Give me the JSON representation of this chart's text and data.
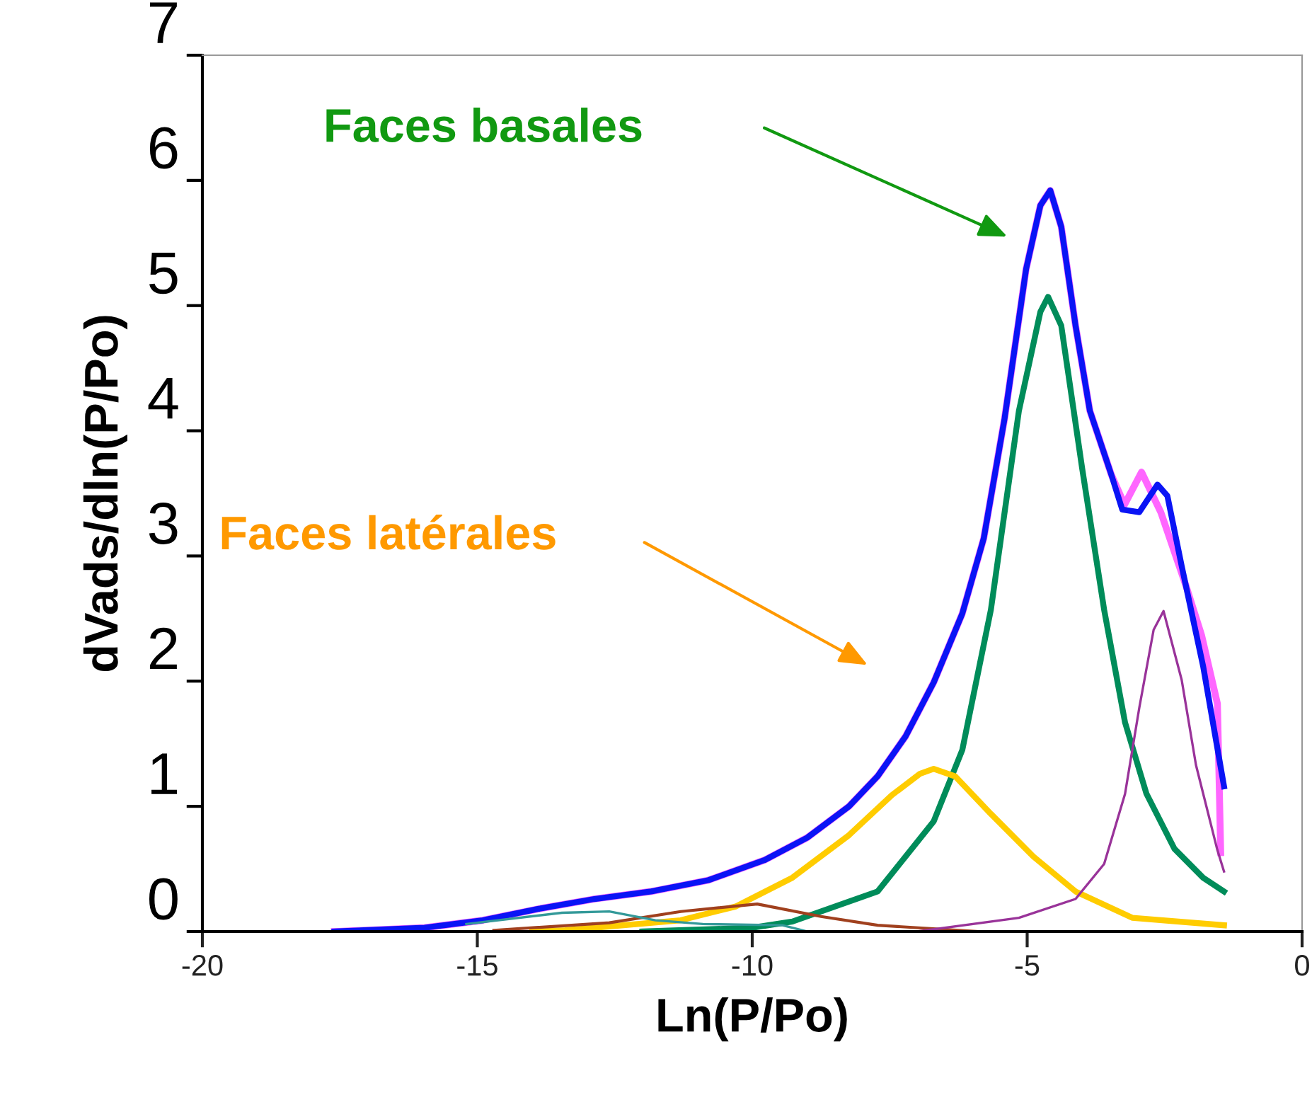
{
  "chart_data": {
    "type": "line",
    "xlabel": "Ln(P/Po)",
    "ylabel": "dVads/dln(P/Po)",
    "xlim": [
      -20,
      0
    ],
    "xticks": [
      -20,
      -15,
      -10,
      -5,
      0
    ],
    "ylim": [
      0,
      7
    ],
    "yticks": [
      0,
      1,
      2,
      3,
      4,
      5,
      6,
      7
    ],
    "grid": false,
    "marker": "none",
    "line_style": "solid",
    "series": [
      {
        "color": "#ff66ff",
        "x": [
          -17.6,
          -15.96,
          -14.9,
          -13.9,
          -12.87,
          -11.84,
          -10.8,
          -9.78,
          -9.0,
          -8.24,
          -7.72,
          -7.21,
          -6.7,
          -6.18,
          -5.79,
          -5.41,
          -5.02,
          -4.76,
          -4.58,
          -4.38,
          -4.12,
          -3.86,
          -3.47,
          -3.23,
          -2.92,
          -2.57,
          -2.11,
          -1.83,
          -1.54,
          -1.48
        ],
        "values": [
          0,
          0.03,
          0.09,
          0.18,
          0.26,
          0.32,
          0.41,
          0.57,
          0.75,
          1.0,
          1.24,
          1.56,
          1.99,
          2.54,
          3.14,
          4.1,
          5.29,
          5.8,
          5.92,
          5.63,
          4.84,
          4.16,
          3.65,
          3.41,
          3.67,
          3.35,
          2.76,
          2.37,
          1.82,
          0.63
        ]
      },
      {
        "color": "#0a14f5",
        "x": [
          -17.6,
          -15.96,
          -14.9,
          -13.9,
          -12.87,
          -11.84,
          -10.8,
          -9.78,
          -9.0,
          -8.24,
          -7.72,
          -7.21,
          -6.7,
          -6.18,
          -5.79,
          -5.41,
          -5.02,
          -4.76,
          -4.58,
          -4.38,
          -4.12,
          -3.86,
          -3.47,
          -3.27,
          -2.96,
          -2.63,
          -2.45,
          -2.19,
          -1.8,
          -1.42
        ],
        "values": [
          0,
          0.03,
          0.09,
          0.18,
          0.26,
          0.32,
          0.41,
          0.57,
          0.75,
          1.0,
          1.24,
          1.56,
          1.99,
          2.54,
          3.14,
          4.1,
          5.29,
          5.8,
          5.92,
          5.63,
          4.84,
          4.16,
          3.65,
          3.37,
          3.35,
          3.57,
          3.48,
          2.92,
          2.12,
          1.16
        ]
      },
      {
        "color": "#008c5a",
        "x": [
          -12,
          -10,
          -9.27,
          -7.72,
          -6.7,
          -6.18,
          -5.66,
          -5.15,
          -4.76,
          -4.62,
          -4.38,
          -4.0,
          -3.6,
          -3.22,
          -2.83,
          -2.32,
          -1.8,
          -1.42
        ],
        "values": [
          0,
          0.03,
          0.08,
          0.32,
          0.88,
          1.45,
          2.57,
          4.16,
          4.95,
          5.07,
          4.84,
          3.7,
          2.57,
          1.67,
          1.1,
          0.66,
          0.43,
          0.32
        ]
      },
      {
        "color": "#ffcc00",
        "x": [
          -14,
          -13.4,
          -11.3,
          -10.3,
          -9.27,
          -8.24,
          -7.46,
          -6.95,
          -6.7,
          -6.31,
          -5.66,
          -4.89,
          -4.12,
          -3.09,
          -1.42
        ],
        "values": [
          0,
          0.01,
          0.09,
          0.2,
          0.43,
          0.77,
          1.09,
          1.26,
          1.3,
          1.24,
          0.94,
          0.6,
          0.32,
          0.11,
          0.05
        ]
      },
      {
        "color": "#a0401e",
        "x": [
          -14.7,
          -12.6,
          -11.3,
          -9.91,
          -8.75,
          -7.72,
          -5.9
        ],
        "values": [
          0.01,
          0.07,
          0.16,
          0.22,
          0.12,
          0.05,
          0
        ]
      },
      {
        "color": "#339999",
        "x": [
          -15.2,
          -13.46,
          -12.6,
          -11.76,
          -10.9,
          -9.45,
          -9.0
        ],
        "values": [
          0.06,
          0.15,
          0.16,
          0.09,
          0.06,
          0.05,
          0
        ]
      },
      {
        "color": "#993399",
        "x": [
          -7,
          -5.15,
          -4.12,
          -3.6,
          -3.22,
          -2.96,
          -2.7,
          -2.52,
          -2.19,
          -1.93,
          -1.54,
          -1.42
        ],
        "values": [
          0,
          0.11,
          0.26,
          0.54,
          1.1,
          1.79,
          2.41,
          2.56,
          2.01,
          1.33,
          0.65,
          0.48
        ]
      }
    ],
    "annotations": [
      "Faces basales",
      "Faces latérales"
    ]
  }
}
